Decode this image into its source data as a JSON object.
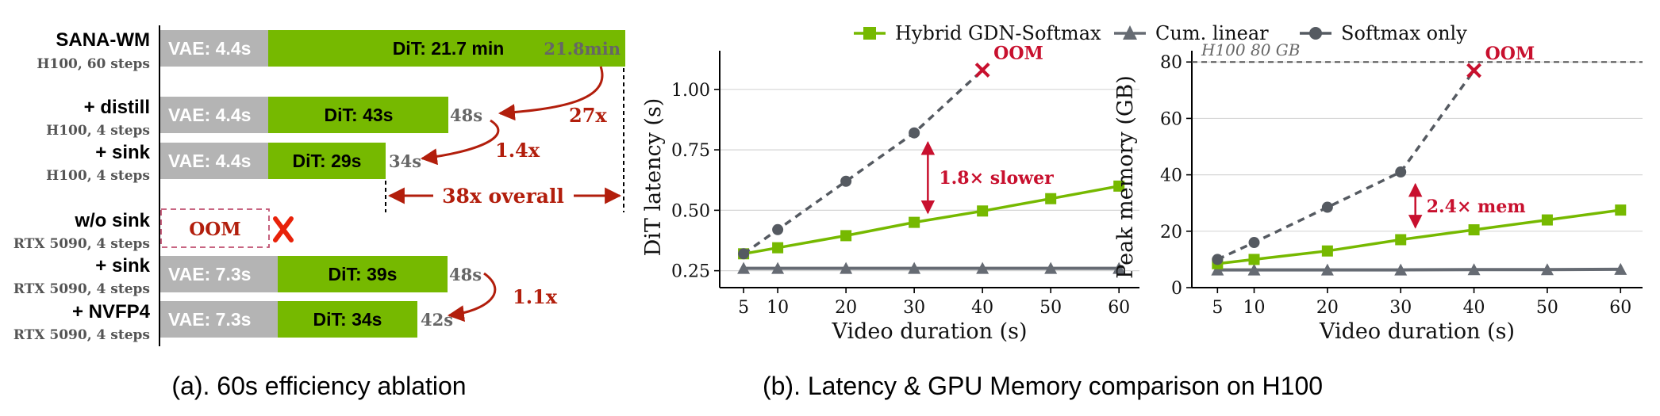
{
  "captions": {
    "a": "(a). 60s efficiency ablation",
    "b": "(b). Latency & GPU Memory comparison on H100"
  },
  "colors": {
    "green": "#76b900",
    "gray_bar": "#b4b4b4",
    "softmax": "#555a61",
    "linear": "#666b73",
    "red": "#b21e0c",
    "crimson": "#c8102e"
  },
  "ablation": {
    "rows": [
      {
        "name": "SANA-WM",
        "sub": "H100, 60 steps",
        "vae_label": "VAE: 4.4s",
        "dit_label": "DiT: 21.7 min",
        "total": "21.8min",
        "vae_s": 4.4,
        "dit_s": 1302
      },
      {
        "name": "+ distill",
        "sub": "H100, 4 steps",
        "vae_label": "VAE: 4.4s",
        "dit_label": "DiT: 43s",
        "total": "48s",
        "vae_s": 4.4,
        "dit_s": 43
      },
      {
        "name": "+ sink",
        "sub": "H100, 4 steps",
        "vae_label": "VAE: 4.4s",
        "dit_label": "DiT: 29s",
        "total": "34s",
        "vae_s": 4.4,
        "dit_s": 29
      },
      {
        "name": "w/o sink",
        "sub": "RTX 5090, 4 steps",
        "oom_label": "OOM"
      },
      {
        "name": "+ sink",
        "sub": "RTX 5090, 4 steps",
        "vae_label": "VAE: 7.3s",
        "dit_label": "DiT: 39s",
        "total": "48s",
        "vae_s": 7.3,
        "dit_s": 39
      },
      {
        "name": "+ NVFP4",
        "sub": "RTX 5090, 4 steps",
        "vae_label": "VAE: 7.3s",
        "dit_label": "DiT: 34s",
        "total": "42s",
        "vae_s": 7.3,
        "dit_s": 34
      }
    ],
    "annotations": {
      "a27": "27x",
      "a14": "1.4x",
      "a38": "38x overall",
      "a11": "1.1x"
    }
  },
  "chart_data": [
    {
      "type": "line",
      "xlabel": "Video duration (s)",
      "ylabel": "DiT latency (s)",
      "xticks": [
        5,
        10,
        20,
        30,
        40,
        50,
        60
      ],
      "yticks": [
        "0.25",
        "0.50",
        "0.75",
        "1.00"
      ],
      "ylim": [
        0.18,
        1.16
      ],
      "xlim": [
        1.5,
        63
      ],
      "grid": "horizontal",
      "legend": "top-center",
      "series": [
        {
          "name": "Hybrid GDN-Softmax",
          "x": [
            5,
            10,
            20,
            30,
            40,
            50,
            60
          ],
          "values": [
            0.32,
            0.345,
            0.395,
            0.45,
            0.497,
            0.548,
            0.6
          ]
        },
        {
          "name": "Cum. linear",
          "x": [
            5,
            10,
            20,
            30,
            40,
            50,
            60
          ],
          "values": [
            0.26,
            0.26,
            0.26,
            0.26,
            0.26,
            0.26,
            0.26
          ]
        },
        {
          "name": "Softmax only",
          "x": [
            5,
            10,
            20,
            30
          ],
          "values": [
            0.32,
            0.42,
            0.62,
            0.82
          ]
        }
      ],
      "oom": {
        "x": 40,
        "y": 1.08,
        "label": "OOM"
      },
      "annotation": {
        "label": "1.8× slower",
        "x": 32,
        "y_top": 0.82,
        "y_bottom": 0.45
      }
    },
    {
      "type": "line",
      "xlabel": "Video duration (s)",
      "ylabel": "Peak memory (GB)",
      "xticks": [
        5,
        10,
        20,
        30,
        40,
        50,
        60
      ],
      "yticks": [
        "0",
        "20",
        "40",
        "60",
        "80"
      ],
      "ylim": [
        0,
        84
      ],
      "xlim": [
        1.5,
        63
      ],
      "grid": "horizontal",
      "series": [
        {
          "name": "Hybrid GDN-Softmax",
          "x": [
            5,
            10,
            20,
            30,
            40,
            50,
            60
          ],
          "values": [
            8.5,
            10,
            13,
            17,
            20.5,
            24,
            27.5
          ]
        },
        {
          "name": "Cum. linear",
          "x": [
            5,
            10,
            20,
            30,
            40,
            50,
            60
          ],
          "values": [
            6.3,
            6.3,
            6.3,
            6.3,
            6.4,
            6.4,
            6.5
          ]
        },
        {
          "name": "Softmax only",
          "x": [
            5,
            10,
            20,
            30
          ],
          "values": [
            10,
            16,
            28.5,
            41
          ]
        }
      ],
      "oom": {
        "x": 40,
        "y": 77,
        "label": "OOM"
      },
      "hline": {
        "y": 80,
        "label": "H100 80 GB"
      },
      "annotation": {
        "label": "2.4× mem",
        "x": 32,
        "y_top": 40,
        "y_bottom": 18
      }
    }
  ]
}
